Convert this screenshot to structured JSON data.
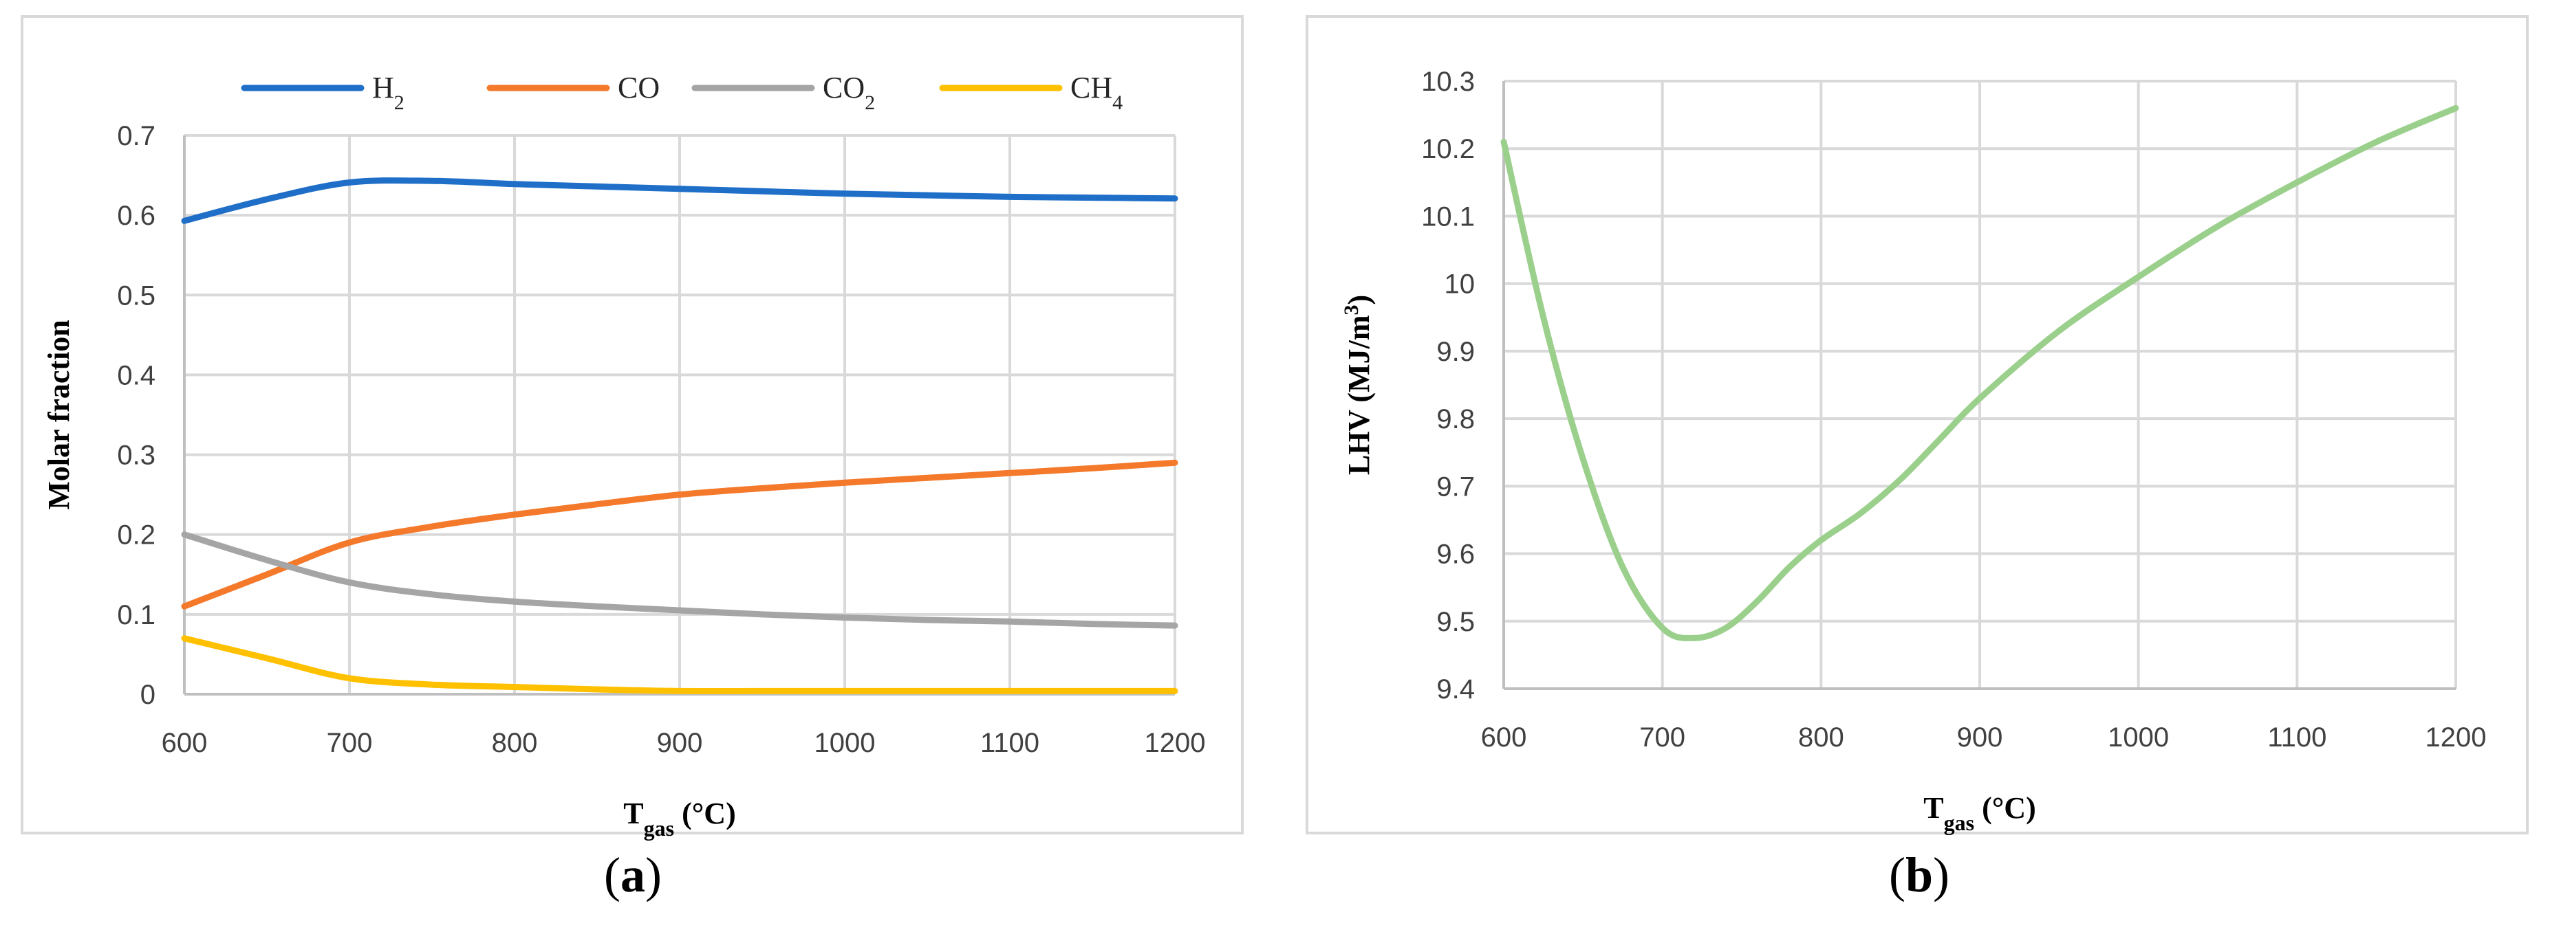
{
  "captions": {
    "a": "a",
    "b": "b"
  },
  "colors": {
    "H2": "#1f6fc9",
    "CO": "#f4792b",
    "CO2": "#a5a5a5",
    "CH4": "#ffc000",
    "LHV": "#9bd08c",
    "grid": "#d9d9d9",
    "axis": "#bfbfbf"
  },
  "chart_data": [
    {
      "id": "a",
      "type": "line",
      "title": "",
      "xlabel": "T",
      "xlabel_sub": "gas",
      "xlabel_unit": " (°C)",
      "ylabel": "Molar fraction",
      "xlim": [
        600,
        1200
      ],
      "ylim": [
        0,
        0.7
      ],
      "xticks": [
        600,
        700,
        800,
        900,
        1000,
        1100,
        1200
      ],
      "yticks": [
        0,
        0.1,
        0.2,
        0.3,
        0.4,
        0.5,
        0.6,
        0.7
      ],
      "ytick_labels": [
        "0",
        "0.1",
        "0.2",
        "0.3",
        "0.4",
        "0.5",
        "0.6",
        "0.7"
      ],
      "legend_position": "top",
      "x": [
        600,
        650,
        700,
        750,
        800,
        850,
        900,
        950,
        1000,
        1050,
        1100,
        1150,
        1200
      ],
      "series": [
        {
          "key": "H2",
          "name": "H",
          "sub": "2",
          "color": "#1f6fc9",
          "values": [
            0.593,
            0.62,
            0.641,
            0.643,
            0.639,
            0.636,
            0.633,
            0.63,
            0.627,
            0.625,
            0.623,
            0.622,
            0.621
          ]
        },
        {
          "key": "CO",
          "name": "CO",
          "sub": "",
          "color": "#f4792b",
          "values": [
            0.11,
            0.15,
            0.19,
            0.21,
            0.225,
            0.238,
            0.25,
            0.258,
            0.265,
            0.271,
            0.277,
            0.283,
            0.29
          ]
        },
        {
          "key": "CO2",
          "name": "CO",
          "sub": "2",
          "color": "#a5a5a5",
          "values": [
            0.2,
            0.168,
            0.14,
            0.125,
            0.116,
            0.11,
            0.105,
            0.1,
            0.096,
            0.093,
            0.091,
            0.088,
            0.086
          ]
        },
        {
          "key": "CH4",
          "name": "CH",
          "sub": "4",
          "color": "#ffc000",
          "values": [
            0.07,
            0.045,
            0.02,
            0.012,
            0.009,
            0.006,
            0.004,
            0.004,
            0.004,
            0.004,
            0.004,
            0.004,
            0.004
          ]
        }
      ]
    },
    {
      "id": "b",
      "type": "line",
      "title": "",
      "xlabel": "T",
      "xlabel_sub": "gas",
      "xlabel_unit": " (°C)",
      "ylabel": "LHV (MJ/m",
      "ylabel_sup": "3",
      "ylabel_end": ")",
      "xlim": [
        600,
        1200
      ],
      "ylim": [
        9.4,
        10.3
      ],
      "xticks": [
        600,
        700,
        800,
        900,
        1000,
        1100,
        1200
      ],
      "yticks": [
        9.4,
        9.5,
        9.6,
        9.7,
        9.8,
        9.9,
        10,
        10.1,
        10.2,
        10.3
      ],
      "ytick_labels": [
        "9.4",
        "9.5",
        "9.6",
        "9.7",
        "9.8",
        "9.9",
        "10",
        "10.1",
        "10.2",
        "10.3"
      ],
      "x": [
        600,
        625,
        650,
        675,
        700,
        720,
        740,
        760,
        780,
        800,
        825,
        850,
        875,
        900,
        950,
        1000,
        1050,
        1100,
        1150,
        1200
      ],
      "series": [
        {
          "key": "LHV",
          "name": "LHV",
          "color": "#9bd08c",
          "values": [
            10.21,
            9.95,
            9.74,
            9.58,
            9.49,
            9.475,
            9.49,
            9.53,
            9.58,
            9.62,
            9.66,
            9.71,
            9.77,
            9.83,
            9.93,
            10.01,
            10.085,
            10.15,
            10.21,
            10.26
          ]
        }
      ]
    }
  ]
}
